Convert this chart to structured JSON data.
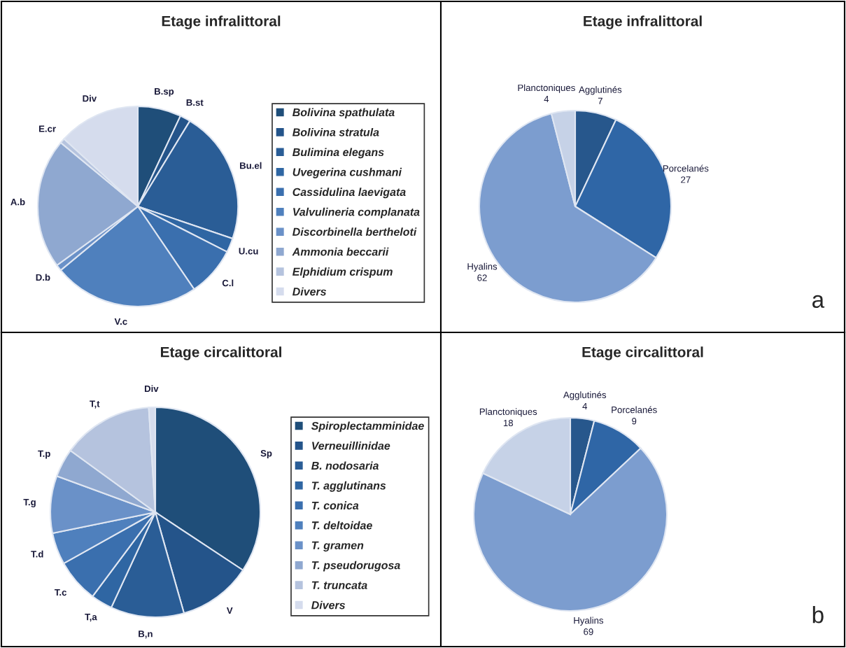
{
  "chart_data": [
    {
      "type": "pie",
      "title": "Etage infralittoral",
      "legend": "right",
      "categories": [
        "Bolivina spathulata",
        "Bolivina stratula",
        "Bulimina elegans",
        "Uvegerina cushmani",
        "Cassidulina laevigata",
        "Valvulineria complanata",
        "Discorbinella bertheloti",
        "Ammonia beccarii",
        "Elphidium crispum",
        "Divers"
      ],
      "values": [
        7,
        1.7,
        21.5,
        2.3,
        8,
        23.5,
        1,
        21,
        0.8,
        13.2
      ],
      "colors": [
        "#1f4e79",
        "#24548a",
        "#2a5d96",
        "#2f66a3",
        "#3a6fae",
        "#4f80bd",
        "#6a91c8",
        "#8fa8d0",
        "#b5c3de",
        "#d5dced"
      ],
      "annotations": [
        {
          "text": "B.sp",
          "x": "Bolivina spathulata"
        },
        {
          "text": "B.st",
          "x": "Bolivina stratula"
        },
        {
          "text": "Bu.el",
          "x": "Bulimina elegans"
        },
        {
          "text": "U.cu",
          "x": "Uvegerina cushmani"
        },
        {
          "text": "C.l",
          "x": "Cassidulina laevigata"
        },
        {
          "text": "V.c",
          "x": "Valvulineria complanata"
        },
        {
          "text": "D.b",
          "x": "Discorbinella bertheloti"
        },
        {
          "text": "A.b",
          "x": "Ammonia beccarii"
        },
        {
          "text": "E.cr",
          "x": "Elphidium crispum"
        },
        {
          "text": "Div",
          "x": "Divers"
        }
      ]
    },
    {
      "type": "pie",
      "title": "Etage infralittoral",
      "data_labels": true,
      "categories": [
        "Agglutinés",
        "Porcelanés",
        "Hyalins",
        "Planctoniques"
      ],
      "values": [
        7,
        27,
        62,
        4
      ],
      "colors": [
        "#27578c",
        "#2f66a6",
        "#7c9dcf",
        "#c6d2e7"
      ],
      "annotations": [
        "a"
      ]
    },
    {
      "type": "pie",
      "title": "Etage circalittoral",
      "legend": "right",
      "categories": [
        "Spiroplectamminidae",
        "Verneuillinidae",
        "B. nodosaria",
        "T. agglutinans",
        "T. conica",
        "T. deltoidae",
        "T. gramen",
        "T. pseudorugosa",
        "T. truncata",
        "Divers"
      ],
      "values": [
        34.3,
        11.3,
        11.3,
        3.3,
        6.7,
        4.9,
        8.8,
        4.4,
        14,
        1
      ],
      "colors": [
        "#1f4e79",
        "#24548a",
        "#2a5d96",
        "#2f66a3",
        "#3a6fae",
        "#4f80bd",
        "#6a91c8",
        "#8fa8d0",
        "#b5c3de",
        "#d5dced"
      ],
      "annotations": [
        {
          "text": "Sp",
          "x": "Spiroplectamminidae"
        },
        {
          "text": "V",
          "x": "Verneuillinidae"
        },
        {
          "text": "B,n",
          "x": "B. nodosaria"
        },
        {
          "text": "T,a",
          "x": "T. agglutinans"
        },
        {
          "text": "T.c",
          "x": "T. conica"
        },
        {
          "text": "T.d",
          "x": "T. deltoidae"
        },
        {
          "text": "T.g",
          "x": "T. gramen"
        },
        {
          "text": "T.p",
          "x": "T. pseudorugosa"
        },
        {
          "text": "T,t",
          "x": "T. truncata"
        },
        {
          "text": "Div",
          "x": "Divers"
        }
      ]
    },
    {
      "type": "pie",
      "title": "Etage circalittoral",
      "data_labels": true,
      "categories": [
        "Agglutinés",
        "Porcelanés",
        "Hyalins",
        "Planctoniques"
      ],
      "values": [
        4,
        9,
        69,
        18
      ],
      "colors": [
        "#27578c",
        "#2f66a6",
        "#7c9dcf",
        "#c6d2e7"
      ],
      "annotations": [
        "b"
      ]
    }
  ]
}
